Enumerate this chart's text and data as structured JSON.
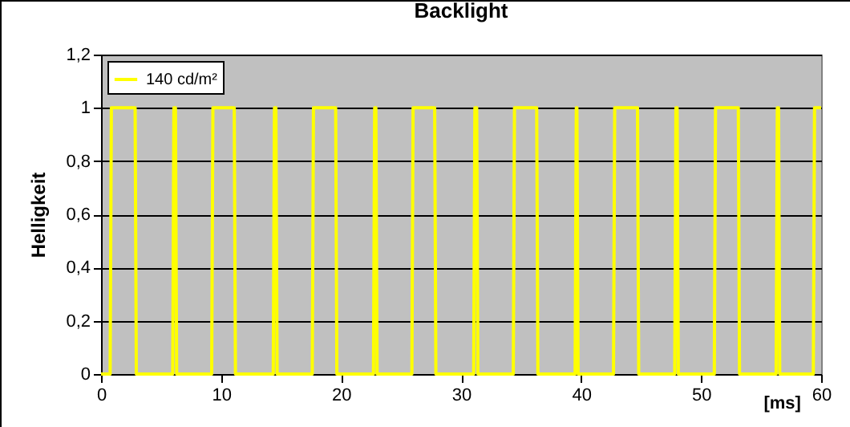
{
  "chart_data": {
    "type": "line",
    "title": "Backlight",
    "xlabel": "[ms]",
    "ylabel": "Helligkeit",
    "x": [
      0,
      0.76,
      0.86,
      2.84,
      2.94,
      5.97,
      6.07,
      6.2,
      6.3,
      9.22,
      9.32,
      11.1,
      11.2,
      14.35,
      14.45,
      14.57,
      14.67,
      17.6,
      17.7,
      19.55,
      19.65,
      22.7,
      22.8,
      22.9,
      23.0,
      25.9,
      26.0,
      27.8,
      27.9,
      31.05,
      31.15,
      31.3,
      31.4,
      34.35,
      34.45,
      36.3,
      36.4,
      39.5,
      39.6,
      39.65,
      39.75,
      42.7,
      42.8,
      44.7,
      44.8,
      47.8,
      47.9,
      48.0,
      48.1,
      51.1,
      51.2,
      53.1,
      53.2,
      56.25,
      56.35,
      56.45,
      56.55,
      59.35,
      59.45,
      60
    ],
    "series": [
      {
        "name": "140 cd/m²",
        "color": "#ffff00",
        "values": [
          0,
          0,
          1,
          1,
          0,
          0,
          1,
          1,
          0,
          0,
          1,
          1,
          0,
          0,
          1,
          1,
          0,
          0,
          1,
          1,
          0,
          0,
          1,
          1,
          0,
          0,
          1,
          1,
          0,
          0,
          1,
          1,
          0,
          0,
          1,
          1,
          0,
          0,
          1,
          1,
          0,
          0,
          1,
          1,
          0,
          0,
          1,
          1,
          0,
          0,
          1,
          1,
          0,
          0,
          1,
          1,
          0,
          0,
          1,
          1
        ]
      }
    ],
    "xlim": [
      0,
      60
    ],
    "xticks": [
      0,
      10,
      20,
      30,
      40,
      50,
      60
    ],
    "ylim": [
      0,
      1.2
    ],
    "yticks": [
      0,
      {
        "value": 0.2,
        "label": "0,2"
      },
      {
        "value": 0.4,
        "label": "0,4"
      },
      {
        "value": 0.6,
        "label": "0,6"
      },
      {
        "value": 0.8,
        "label": "0,8"
      },
      1,
      {
        "value": 1.2,
        "label": "1,2"
      }
    ],
    "grid": "y",
    "legend": "top left"
  }
}
